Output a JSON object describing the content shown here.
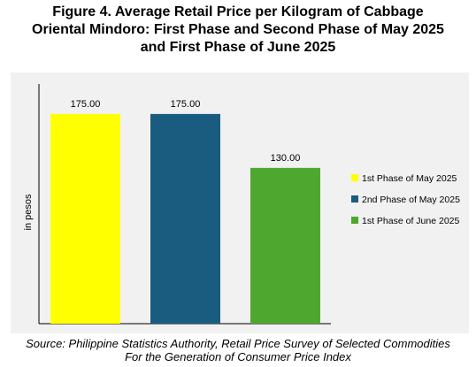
{
  "chart_data": {
    "type": "bar",
    "title_lines": [
      "Figure 4. Average Retail Price per Kilogram of Cabbage",
      "Oriental Mindoro: First Phase and Second Phase of May 2025",
      "and First Phase of June 2025"
    ],
    "ylabel": "in pesos",
    "ylim": [
      0,
      200
    ],
    "grid": false,
    "legend_position": "right",
    "series": [
      {
        "name": "1st Phase of May 2025",
        "value": 175,
        "label": "175.00",
        "color": "#ffff00"
      },
      {
        "name": "2nd Phase of May 2025",
        "value": 175,
        "label": "175.00",
        "color": "#1a5b80"
      },
      {
        "name": "1st Phase of June 2025",
        "value": 130,
        "label": "130.00",
        "color": "#4ea72e"
      }
    ]
  },
  "source_lines": [
    "Source: Philippine Statistics Authority, Retail Price Survey of Selected Commodities",
    "For the Generation of Consumer Price Index"
  ]
}
